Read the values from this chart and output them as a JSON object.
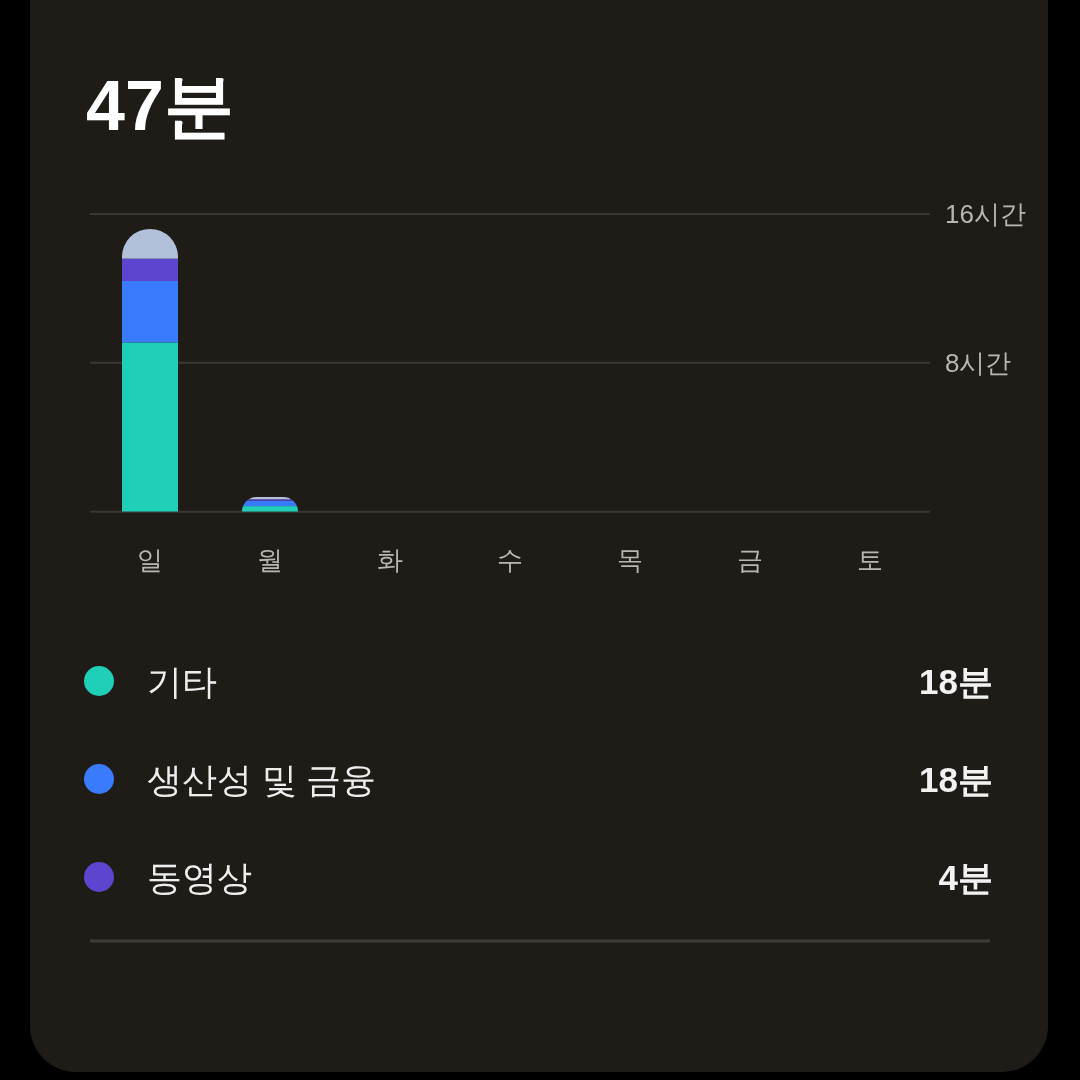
{
  "chart_data": {
    "type": "bar",
    "stacked": true,
    "title": "47분",
    "categories": [
      "일",
      "월",
      "화",
      "수",
      "목",
      "금",
      "토"
    ],
    "series": [
      {
        "name": "기타",
        "color": "#1fcfb8",
        "values": [
          9.1,
          0.3,
          null,
          null,
          null,
          null,
          null
        ]
      },
      {
        "name": "생산성 및 금융",
        "color": "#3a7bfd",
        "values": [
          3.3,
          0.3,
          null,
          null,
          null,
          null,
          null
        ]
      },
      {
        "name": "동영상",
        "color": "#5e45d0",
        "values": [
          1.2,
          0.07,
          null,
          null,
          null,
          null,
          null
        ]
      },
      {
        "color": "#b3c0da",
        "values": [
          1.6,
          0.12,
          null,
          null,
          null,
          null,
          null
        ]
      }
    ],
    "ylim": [
      0,
      16
    ],
    "yticks": [
      {
        "value": 0,
        "label": null
      },
      {
        "value": 8,
        "label": "8시간"
      },
      {
        "value": 16,
        "label": "16시간"
      }
    ],
    "grid": "y",
    "legend": "bottom",
    "annotations": [
      "18분",
      "18분",
      "4분"
    ]
  }
}
